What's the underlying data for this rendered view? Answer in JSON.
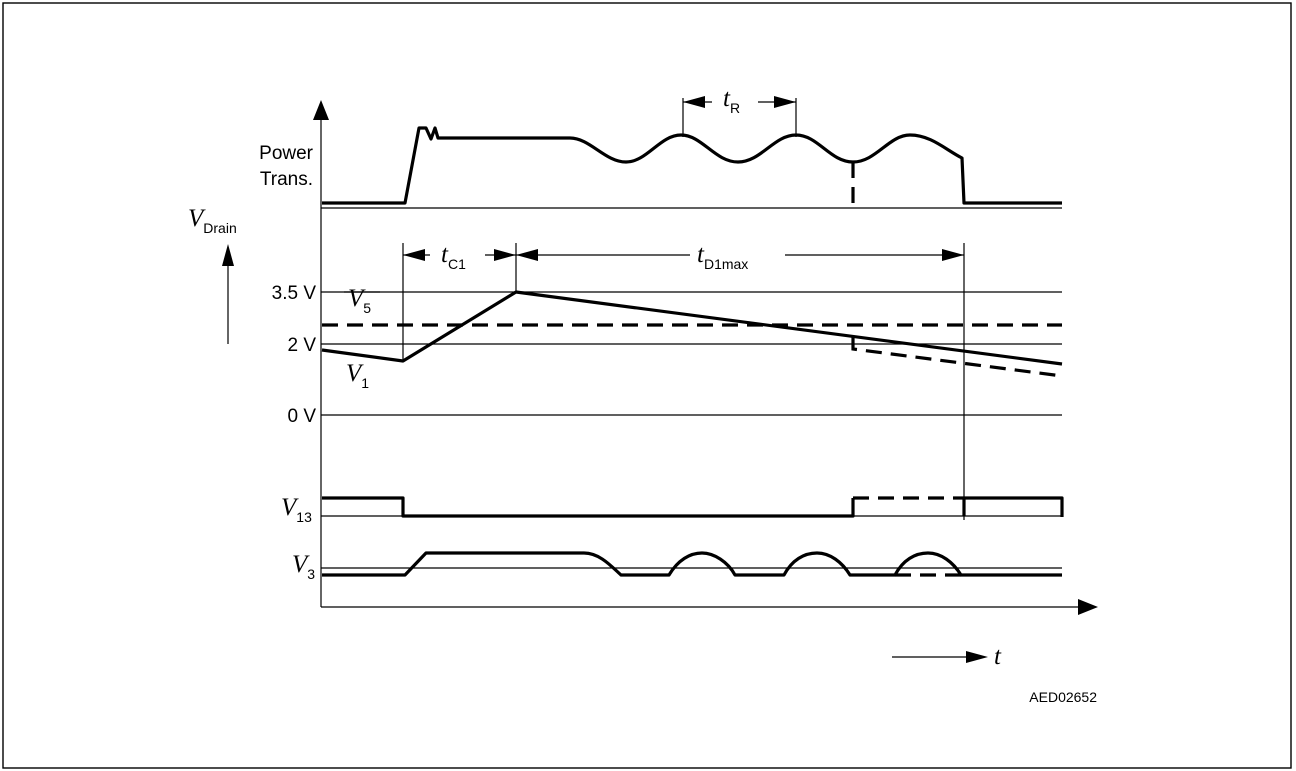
{
  "labels": {
    "power_line1": "Power",
    "power_line2": "Trans.",
    "v_drain": {
      "main": "V",
      "sub": "Drain"
    },
    "level_35": "3.5 V",
    "level_2": "2 V",
    "level_0": "0 V",
    "v5": {
      "main": "V",
      "sub": "5"
    },
    "v1": {
      "main": "V",
      "sub": "1"
    },
    "v13": {
      "main": "V",
      "sub": "13"
    },
    "v3": {
      "main": "V",
      "sub": "3"
    },
    "t_r": {
      "main": "t",
      "sub": "R"
    },
    "t_c1": {
      "main": "t",
      "sub": "C1"
    },
    "t_d1max": {
      "main": "t",
      "sub": "D1max"
    },
    "t_axis": "t",
    "code": "AED02652"
  }
}
